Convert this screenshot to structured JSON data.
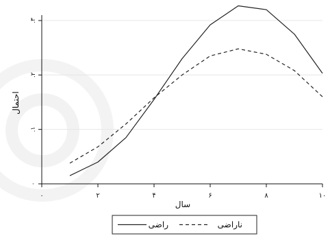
{
  "chart_data": {
    "type": "line",
    "title": "",
    "xlabel": "سال",
    "ylabel": "احتمال",
    "xlim": [
      0,
      10
    ],
    "ylim": [
      0,
      0.31
    ],
    "x_ticks": [
      0,
      2,
      4,
      6,
      8,
      10
    ],
    "x_tick_labels": [
      "۰",
      "۲",
      "۴",
      "۶",
      "۸",
      "۱۰"
    ],
    "y_ticks": [
      0,
      0.1,
      0.2,
      0.3
    ],
    "y_tick_labels": [
      "۰",
      ".۱",
      ".۲",
      ".۳"
    ],
    "grid": true,
    "legend_position": "bottom",
    "series": [
      {
        "name": "راضی",
        "style": "solid",
        "color": "#222222",
        "x": [
          1,
          2,
          3,
          4,
          5,
          6,
          7,
          8,
          9,
          10
        ],
        "y": [
          0.015,
          0.04,
          0.085,
          0.155,
          0.23,
          0.292,
          0.327,
          0.32,
          0.275,
          0.203
        ]
      },
      {
        "name": "ناراضی",
        "style": "dashed",
        "color": "#222222",
        "x": [
          1,
          2,
          3,
          4,
          5,
          6,
          7,
          8,
          9,
          10
        ],
        "y": [
          0.038,
          0.068,
          0.11,
          0.158,
          0.2,
          0.235,
          0.248,
          0.238,
          0.208,
          0.16
        ]
      }
    ]
  }
}
